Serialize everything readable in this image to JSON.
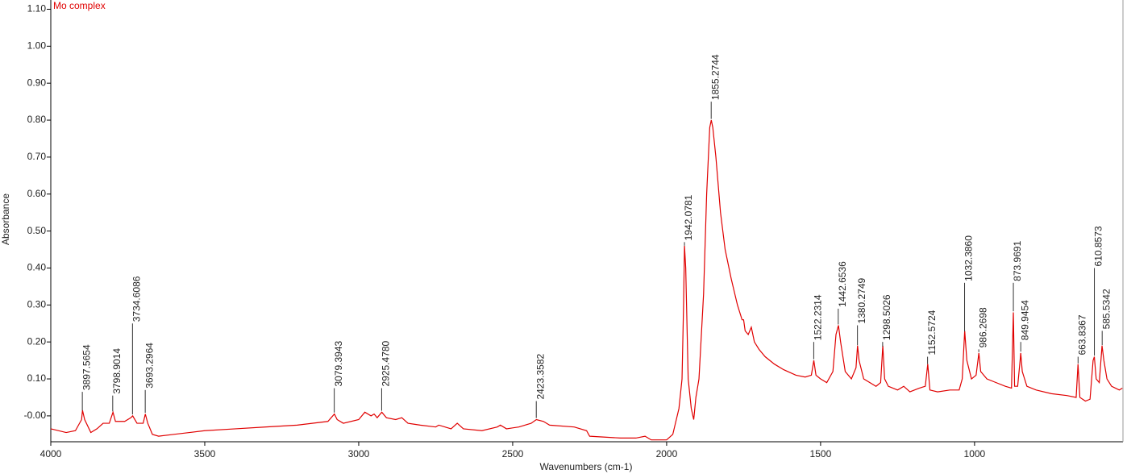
{
  "chart_data": {
    "type": "line",
    "x_label": "Wavenumbers (cm-1)",
    "y_label": "Absorbance",
    "xlim": [
      4000,
      518
    ],
    "ylim": [
      -0.07,
      1.125
    ],
    "xticks": [
      4000,
      3500,
      3000,
      2500,
      2000,
      1500,
      1000
    ],
    "yticks": [
      {
        "value": 0,
        "label": "-0.00"
      },
      {
        "value": 0.1,
        "label": "0.10"
      },
      {
        "value": 0.2,
        "label": "0.20"
      },
      {
        "value": 0.3,
        "label": "0.30"
      },
      {
        "value": 0.4,
        "label": "0.40"
      },
      {
        "value": 0.5,
        "label": "0.50"
      },
      {
        "value": 0.6,
        "label": "0.60"
      },
      {
        "value": 0.7,
        "label": "0.70"
      },
      {
        "value": 0.8,
        "label": "0.80"
      },
      {
        "value": 0.9,
        "label": "0.90"
      },
      {
        "value": 1.0,
        "label": "1.00"
      },
      {
        "value": 1.1,
        "label": "1.10"
      }
    ],
    "x": [
      4000,
      3950,
      3920,
      3900,
      3897,
      3890,
      3870,
      3850,
      3830,
      3810,
      3800,
      3798,
      3790,
      3760,
      3740,
      3734,
      3720,
      3700,
      3693,
      3685,
      3670,
      3650,
      3600,
      3550,
      3500,
      3400,
      3300,
      3200,
      3100,
      3079,
      3070,
      3050,
      3000,
      2980,
      2960,
      2950,
      2940,
      2925,
      2910,
      2880,
      2860,
      2840,
      2800,
      2750,
      2740,
      2700,
      2680,
      2660,
      2600,
      2550,
      2540,
      2520,
      2480,
      2440,
      2423,
      2400,
      2380,
      2300,
      2260,
      2250,
      2150,
      2100,
      2070,
      2050,
      2000,
      1980,
      1960,
      1950,
      1945,
      1942,
      1938,
      1930,
      1920,
      1912,
      1905,
      1895,
      1880,
      1870,
      1860,
      1855,
      1850,
      1840,
      1825,
      1810,
      1790,
      1770,
      1755,
      1750,
      1745,
      1735,
      1725,
      1715,
      1700,
      1680,
      1650,
      1620,
      1580,
      1550,
      1530,
      1522,
      1515,
      1500,
      1480,
      1460,
      1450,
      1442,
      1435,
      1420,
      1400,
      1385,
      1380,
      1375,
      1360,
      1340,
      1320,
      1305,
      1298,
      1292,
      1280,
      1250,
      1230,
      1210,
      1180,
      1160,
      1152,
      1145,
      1120,
      1080,
      1050,
      1040,
      1032,
      1025,
      1010,
      995,
      986,
      980,
      960,
      930,
      900,
      880,
      874,
      870,
      860,
      852,
      850,
      845,
      830,
      800,
      750,
      700,
      670,
      664,
      658,
      640,
      625,
      615,
      611,
      605,
      595,
      586,
      580,
      570,
      555,
      530,
      520
    ],
    "series": [
      {
        "name": "Mo complex",
        "color": "#e00000",
        "values": [
          -0.035,
          -0.045,
          -0.04,
          -0.01,
          0.015,
          -0.01,
          -0.045,
          -0.035,
          -0.02,
          -0.02,
          0.005,
          0.01,
          -0.015,
          -0.015,
          -0.005,
          0.0,
          -0.02,
          -0.02,
          0.005,
          -0.02,
          -0.05,
          -0.055,
          -0.05,
          -0.045,
          -0.04,
          -0.035,
          -0.03,
          -0.025,
          -0.015,
          0.005,
          -0.01,
          -0.02,
          -0.01,
          0.01,
          0.0,
          0.005,
          -0.005,
          0.01,
          -0.005,
          -0.01,
          -0.005,
          -0.02,
          -0.025,
          -0.03,
          -0.025,
          -0.035,
          -0.02,
          -0.035,
          -0.04,
          -0.03,
          -0.025,
          -0.035,
          -0.03,
          -0.02,
          -0.01,
          -0.015,
          -0.025,
          -0.03,
          -0.04,
          -0.055,
          -0.06,
          -0.06,
          -0.055,
          -0.065,
          -0.065,
          -0.05,
          0.02,
          0.1,
          0.3,
          0.46,
          0.4,
          0.1,
          0.02,
          -0.01,
          0.05,
          0.1,
          0.33,
          0.6,
          0.78,
          0.8,
          0.78,
          0.7,
          0.55,
          0.45,
          0.37,
          0.3,
          0.26,
          0.26,
          0.23,
          0.22,
          0.24,
          0.2,
          0.18,
          0.16,
          0.14,
          0.125,
          0.11,
          0.105,
          0.11,
          0.15,
          0.11,
          0.1,
          0.09,
          0.12,
          0.22,
          0.245,
          0.2,
          0.12,
          0.1,
          0.13,
          0.19,
          0.15,
          0.1,
          0.09,
          0.08,
          0.09,
          0.19,
          0.1,
          0.08,
          0.07,
          0.08,
          0.065,
          0.075,
          0.08,
          0.14,
          0.07,
          0.065,
          0.07,
          0.07,
          0.1,
          0.23,
          0.15,
          0.1,
          0.11,
          0.17,
          0.12,
          0.1,
          0.09,
          0.08,
          0.075,
          0.28,
          0.08,
          0.08,
          0.15,
          0.17,
          0.12,
          0.08,
          0.07,
          0.06,
          0.055,
          0.05,
          0.14,
          0.05,
          0.04,
          0.045,
          0.15,
          0.16,
          0.1,
          0.09,
          0.19,
          0.15,
          0.1,
          0.08,
          0.07,
          0.075
        ]
      }
    ],
    "peaks": [
      {
        "x": 3897.5654,
        "y": 0.065,
        "label": "3897.5654"
      },
      {
        "x": 3798.9014,
        "y": 0.055,
        "label": "3798.9014"
      },
      {
        "x": 3734.6086,
        "y": 0.25,
        "label": "3734.6086"
      },
      {
        "x": 3693.2964,
        "y": 0.07,
        "label": "3693.2964"
      },
      {
        "x": 3079.3943,
        "y": 0.075,
        "label": "3079.3943"
      },
      {
        "x": 2925.478,
        "y": 0.075,
        "label": "2925.4780"
      },
      {
        "x": 2423.3582,
        "y": 0.04,
        "label": "2423.3582"
      },
      {
        "x": 1942.0781,
        "y": 0.47,
        "label": "1942.0781"
      },
      {
        "x": 1855.2744,
        "y": 0.85,
        "label": "1855.2744"
      },
      {
        "x": 1522.2314,
        "y": 0.2,
        "label": "1522.2314"
      },
      {
        "x": 1442.6536,
        "y": 0.29,
        "label": "1442.6536"
      },
      {
        "x": 1380.2749,
        "y": 0.245,
        "label": "1380.2749"
      },
      {
        "x": 1298.5026,
        "y": 0.2,
        "label": "1298.5026"
      },
      {
        "x": 1152.5724,
        "y": 0.16,
        "label": "1152.5724"
      },
      {
        "x": 1032.386,
        "y": 0.36,
        "label": "1032.3860"
      },
      {
        "x": 986.2698,
        "y": 0.18,
        "label": "986.2698"
      },
      {
        "x": 873.9691,
        "y": 0.36,
        "label": "873.9691"
      },
      {
        "x": 849.9454,
        "y": 0.2,
        "label": "849.9454"
      },
      {
        "x": 663.8367,
        "y": 0.16,
        "label": "663.8367"
      },
      {
        "x": 610.8573,
        "y": 0.4,
        "label": "610.8573"
      },
      {
        "x": 585.5342,
        "y": 0.23,
        "label": "585.5342"
      }
    ]
  }
}
